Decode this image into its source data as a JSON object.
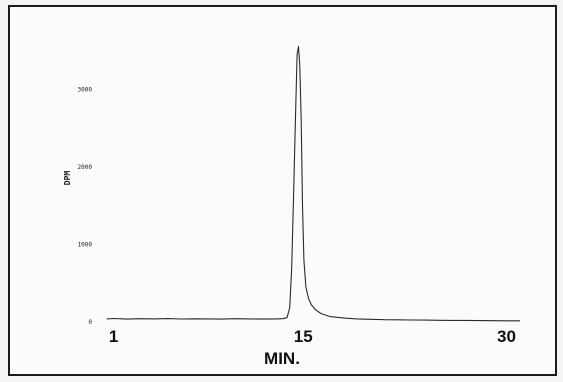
{
  "chart_data": {
    "type": "line",
    "title": "",
    "xlabel": "MIN.",
    "ylabel": "DPM",
    "xlim": [
      0,
      31
    ],
    "ylim": [
      0,
      3700
    ],
    "x_ticks": [
      1,
      15,
      30
    ],
    "y_ticks": [
      0,
      1000,
      2000,
      3000
    ],
    "y_tick_labels": [
      "0",
      "1000",
      "2000",
      "3000"
    ],
    "x_tick_labels": [
      "1",
      "15",
      "30"
    ],
    "grid": false,
    "legend": "none",
    "series": [
      {
        "x": [
          0.5,
          1,
          2,
          3,
          4,
          5,
          6,
          7,
          8,
          9,
          10,
          11,
          12,
          13,
          13.5,
          13.8,
          14.0,
          14.15,
          14.3,
          14.45,
          14.55,
          14.65,
          14.75,
          14.85,
          14.95,
          15.05,
          15.2,
          15.4,
          15.6,
          15.9,
          16.3,
          17,
          18,
          19,
          20,
          21,
          22,
          23,
          24,
          25,
          26,
          27,
          28,
          29,
          30,
          31
        ],
        "y": [
          40,
          45,
          38,
          42,
          40,
          44,
          39,
          41,
          40,
          38,
          42,
          40,
          38,
          40,
          42,
          55,
          180,
          700,
          1700,
          2800,
          3450,
          3550,
          3300,
          2600,
          1500,
          800,
          450,
          300,
          220,
          160,
          110,
          70,
          50,
          40,
          35,
          30,
          28,
          26,
          25,
          22,
          20,
          20,
          18,
          17,
          15,
          15
        ]
      }
    ]
  }
}
